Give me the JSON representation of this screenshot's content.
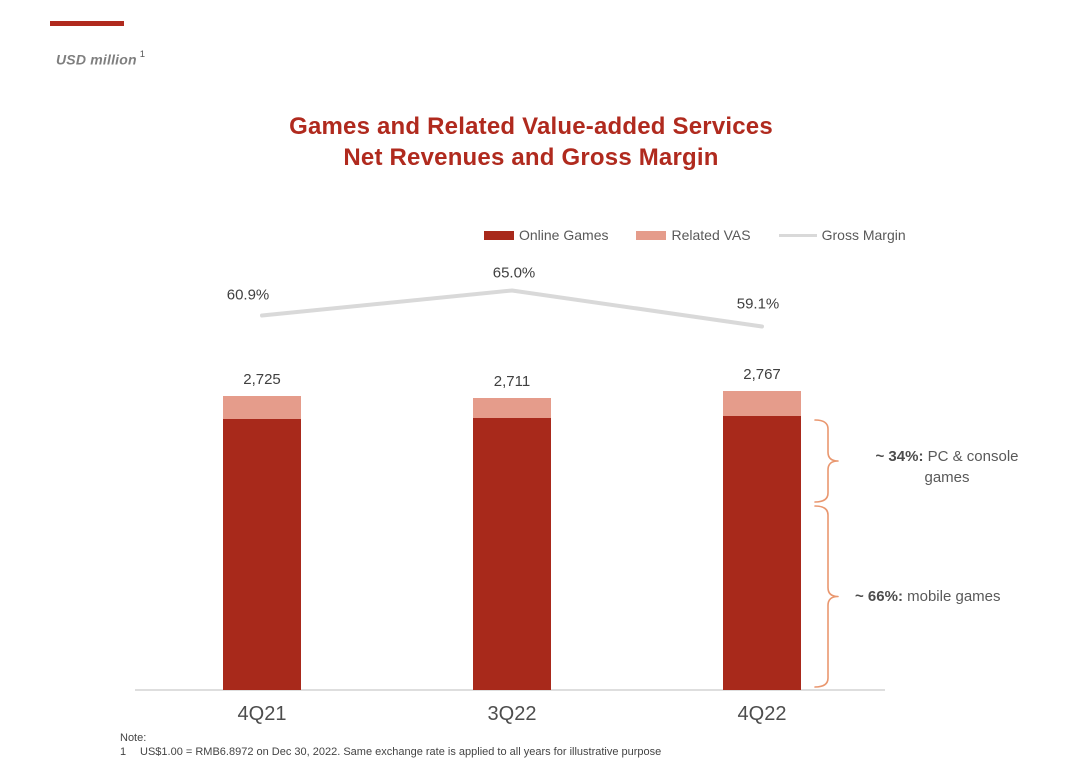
{
  "header": {
    "unit_label": "USD million",
    "unit_footnote_marker": "1"
  },
  "title": {
    "line1": "Games and Related Value-added Services",
    "line2": "Net Revenues and Gross Margin"
  },
  "legend": [
    {
      "label": "Online Games",
      "type": "box",
      "color": "#A8291B"
    },
    {
      "label": "Related VAS",
      "type": "box",
      "color": "#E59C8B"
    },
    {
      "label": "Gross Margin",
      "type": "line",
      "color": "#D9D9D9"
    }
  ],
  "chart_data": {
    "type": "bar",
    "subtype": "stacked-bars-with-line-overlay",
    "title": "Games and Related Value-added Services Net Revenues and Gross Margin",
    "ylabel": "USD million",
    "categories": [
      "4Q21",
      "3Q22",
      "4Q22"
    ],
    "series": [
      {
        "name": "Online Games",
        "values": [
          2511,
          2520,
          2544
        ],
        "color": "#A8291B",
        "values_note": "estimated from segment heights; only stack totals are labeled"
      },
      {
        "name": "Related VAS",
        "values": [
          214,
          191,
          223
        ],
        "color": "#E59C8B",
        "values_note": "estimated from segment heights; only stack totals are labeled"
      }
    ],
    "totals": [
      2725,
      2711,
      2767
    ],
    "total_labels": [
      "2,725",
      "2,711",
      "2,767"
    ],
    "line": {
      "name": "Gross Margin",
      "values_pct": [
        60.9,
        65.0,
        59.1
      ],
      "labels": [
        "60.9%",
        "65.0%",
        "59.1%"
      ],
      "color": "#D9D9D9"
    },
    "ylim": [
      0,
      3100
    ],
    "grid": false,
    "legend_position": "top-right"
  },
  "annotations": [
    {
      "bold": "~ 34%:",
      "rest": " PC & console games"
    },
    {
      "bold": "~ 66%:",
      "rest": " mobile games"
    }
  ],
  "note": {
    "heading": "Note:",
    "items": [
      {
        "marker": "1",
        "text": "US$1.00 = RMB6.8972 on Dec 30, 2022. Same exchange rate is applied to all years for illustrative purpose"
      }
    ]
  },
  "colors": {
    "accent": "#B02A1E",
    "bar_online": "#A8291B",
    "bar_vas": "#E59C8B",
    "gross_margin_line": "#D9D9D9",
    "brace": "#E9976F",
    "axis": "#DEDEDE"
  }
}
